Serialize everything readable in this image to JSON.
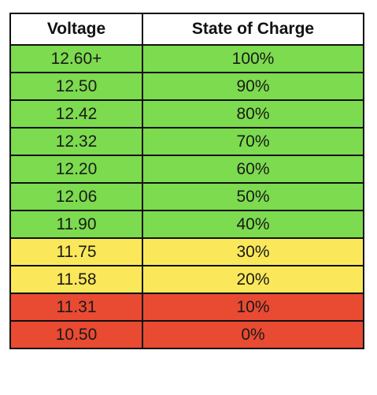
{
  "chart_data": {
    "type": "table",
    "columns": [
      "Voltage",
      "State of Charge"
    ],
    "rows": [
      {
        "voltage": "12.60+",
        "soc": "100%",
        "color": "#7cdb4e"
      },
      {
        "voltage": "12.50",
        "soc": "90%",
        "color": "#7cdb4e"
      },
      {
        "voltage": "12.42",
        "soc": "80%",
        "color": "#7cdb4e"
      },
      {
        "voltage": "12.32",
        "soc": "70%",
        "color": "#7cdb4e"
      },
      {
        "voltage": "12.20",
        "soc": "60%",
        "color": "#7cdb4e"
      },
      {
        "voltage": "12.06",
        "soc": "50%",
        "color": "#7cdb4e"
      },
      {
        "voltage": "11.90",
        "soc": "40%",
        "color": "#7cdb4e"
      },
      {
        "voltage": "11.75",
        "soc": "30%",
        "color": "#fbe85a"
      },
      {
        "voltage": "11.58",
        "soc": "20%",
        "color": "#fbe85a"
      },
      {
        "voltage": "11.31",
        "soc": "10%",
        "color": "#e94a32"
      },
      {
        "voltage": "10.50",
        "soc": "0%",
        "color": "#e94a32"
      }
    ]
  }
}
